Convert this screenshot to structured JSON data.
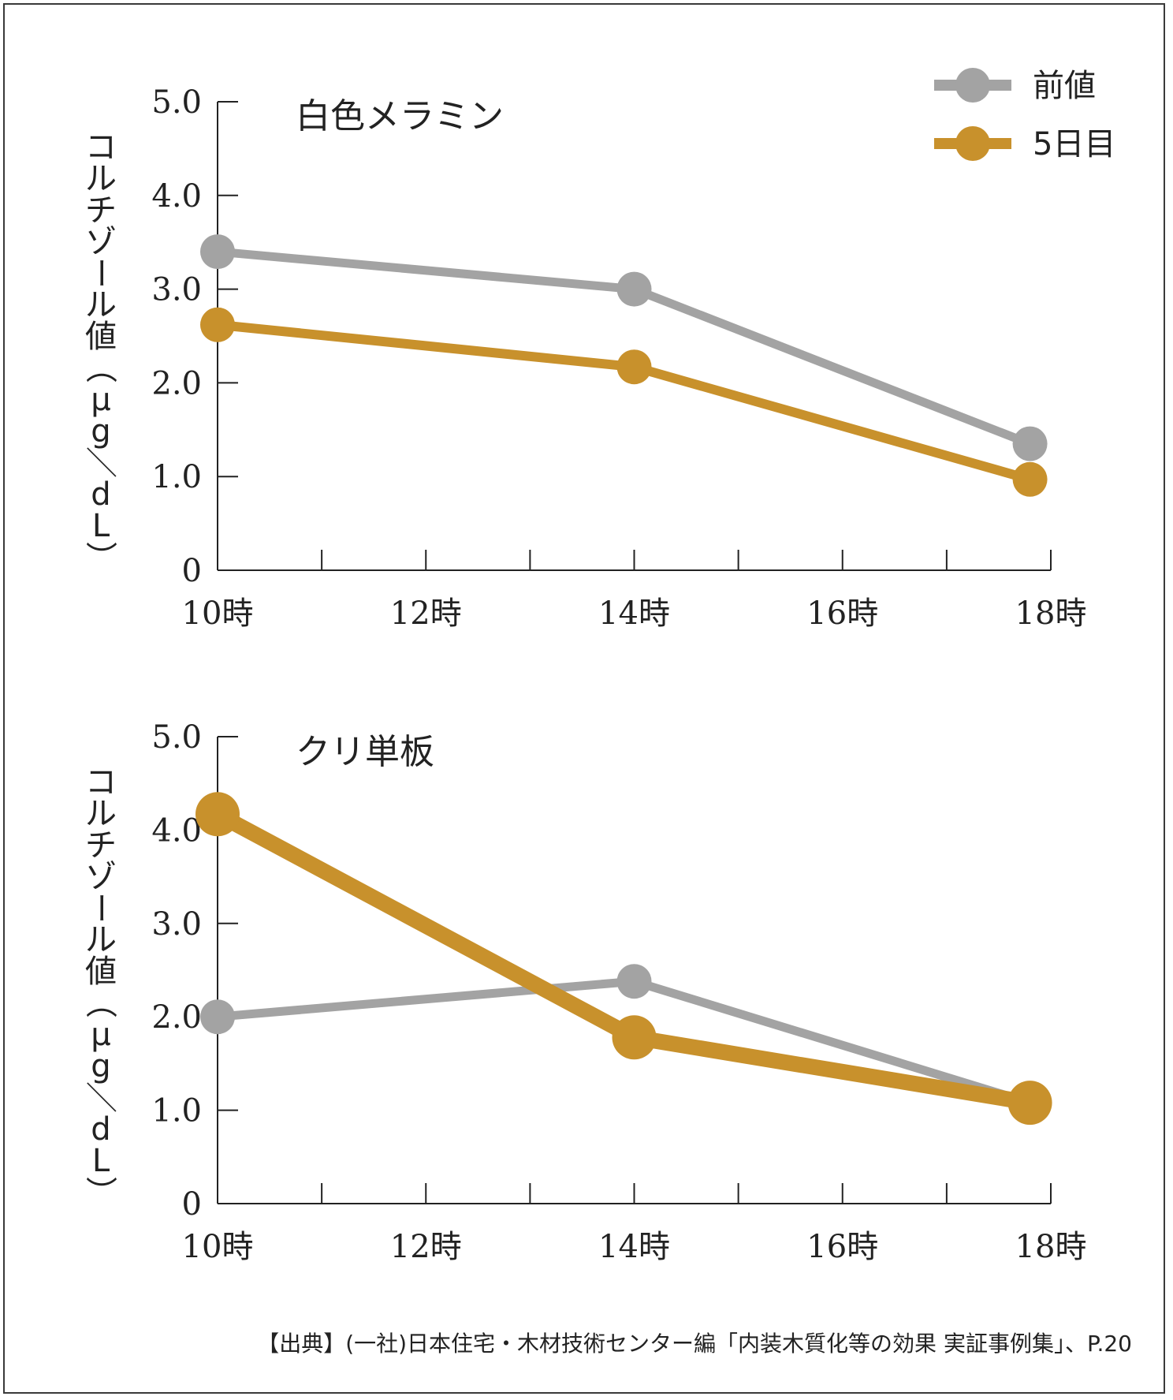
{
  "chart_data": [
    {
      "type": "line",
      "title": "白色メラミン",
      "categories": [
        "10時",
        "12時",
        "14時",
        "16時",
        "18時"
      ],
      "x": [
        10,
        14,
        17.8
      ],
      "xlim": [
        10,
        18
      ],
      "ylim": [
        0,
        5
      ],
      "yticks": [
        "0",
        "1.0",
        "2.0",
        "3.0",
        "4.0",
        "5.0"
      ],
      "ylabel": "コルチゾール値（μg／dL）",
      "series": [
        {
          "name": "前値",
          "values": [
            3.4,
            3.0,
            1.35
          ]
        },
        {
          "name": "5日目",
          "values": [
            2.62,
            2.17,
            0.97
          ]
        }
      ]
    },
    {
      "type": "line",
      "title": "クリ単板",
      "categories": [
        "10時",
        "12時",
        "14時",
        "16時",
        "18時"
      ],
      "x": [
        10,
        14,
        17.8
      ],
      "xlim": [
        10,
        18
      ],
      "ylim": [
        0,
        5
      ],
      "yticks": [
        "0",
        "1.0",
        "2.0",
        "3.0",
        "4.0",
        "5.0"
      ],
      "ylabel": "コルチゾール値（μg／dL）",
      "series": [
        {
          "name": "前値",
          "values": [
            2.0,
            2.38,
            1.08
          ]
        },
        {
          "name": "5日目",
          "values": [
            4.17,
            1.78,
            1.08
          ]
        }
      ]
    }
  ],
  "legend": [
    {
      "label": "前値",
      "color": "#a3a3a3"
    },
    {
      "label": "5日目",
      "color": "#c8912c"
    }
  ],
  "source": "【出典】(一社)日本住宅・木材技術センター編「内装木質化等の効果 実証事例集」、P.20"
}
